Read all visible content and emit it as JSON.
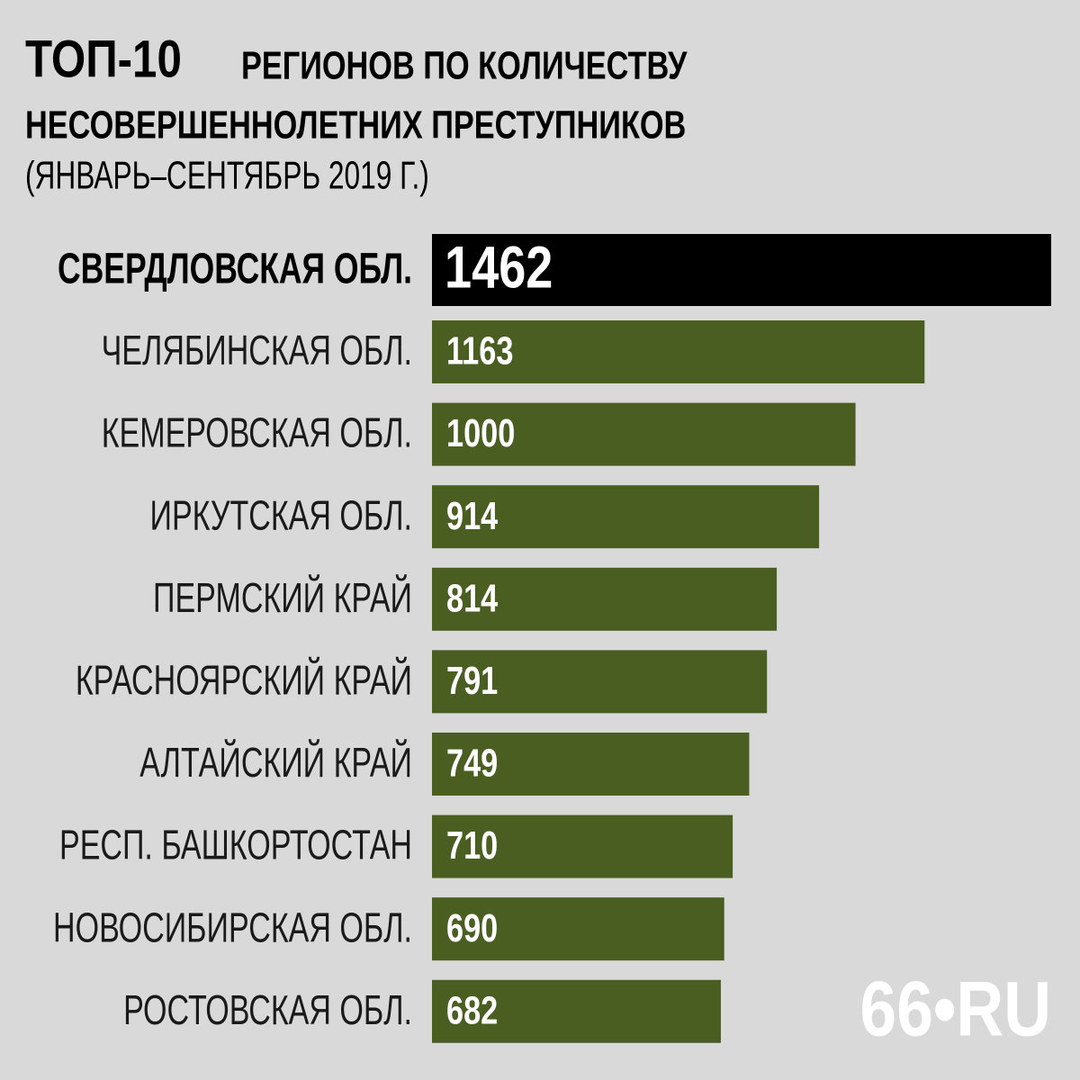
{
  "chart_data": {
    "type": "barh",
    "title": [
      "ТОП-10",
      "РЕГИОНОВ ПО КОЛИЧЕСТВУ",
      "НЕСОВЕРШЕННОЛЕТНИХ ПРЕСТУПНИКОВ"
    ],
    "subtitle": "(ЯНВАРЬ–СЕНТЯБРЬ 2019 Г.)",
    "categories": [
      "СВЕРДЛОВСКАЯ ОБЛ.",
      "ЧЕЛЯБИНСКАЯ ОБЛ.",
      "КЕМЕРОВСКАЯ ОБЛ.",
      "ИРКУТСКАЯ ОБЛ.",
      "ПЕРМСКИЙ КРАЙ",
      "КРАСНОЯРСКИЙ КРАЙ",
      "АЛТАЙСКИЙ КРАЙ",
      "РЕСП. БАШКОРТОСТАН",
      "НОВОСИБИРСКАЯ ОБЛ.",
      "РОСТОВСКАЯ ОБЛ."
    ],
    "values": [
      1462,
      1163,
      1000,
      914,
      814,
      791,
      749,
      710,
      690,
      682
    ],
    "colors": [
      "#000000",
      "#4b5e21",
      "#4b5e21",
      "#4b5e21",
      "#4b5e21",
      "#4b5e21",
      "#4b5e21",
      "#4b5e21",
      "#4b5e21",
      "#4b5e21"
    ],
    "logo": "66•RU"
  }
}
